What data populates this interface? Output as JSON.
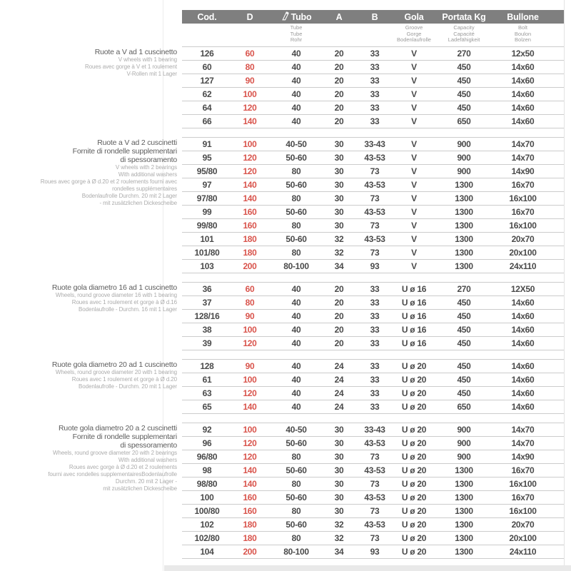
{
  "page": {
    "background": "#ffffff",
    "header_bg": "#7f7f7f",
    "accent_red": "#d9544c",
    "row_line_color": "#cccccc"
  },
  "table": {
    "columns": [
      {
        "key": "cod",
        "label": "Cod.",
        "sub": []
      },
      {
        "key": "d",
        "label": "D",
        "sub": [],
        "value_color": "#d9544c"
      },
      {
        "key": "tubo",
        "label": "Tubo",
        "icon": "tube-icon",
        "sub": [
          "Tube",
          "Tube",
          "Rohr"
        ]
      },
      {
        "key": "a",
        "label": "A",
        "sub": []
      },
      {
        "key": "b",
        "label": "B",
        "sub": []
      },
      {
        "key": "gola",
        "label": "Gola",
        "sub": [
          "Groove",
          "Gorge",
          "Bodenlaufrolle"
        ]
      },
      {
        "key": "portata",
        "label": "Portata Kg",
        "sub": [
          "Capacity",
          "Capacité",
          "Ladefähigkeit"
        ]
      },
      {
        "key": "bullone",
        "label": "Bullone",
        "sub": [
          "Bolt",
          "Boulon",
          "Bolzen"
        ]
      }
    ],
    "groups": [
      {
        "description": {
          "title_lines": [
            "Ruote a V ad 1 cuscinetto"
          ],
          "sub_lines": [
            "V wheels with 1 bearing",
            "Roues avec gorge à V et 1 roulement",
            "V-Rollen mit 1 Lager"
          ]
        },
        "rows": [
          [
            "126",
            "60",
            "40",
            "20",
            "33",
            "V",
            "270",
            "12x50"
          ],
          [
            "60",
            "80",
            "40",
            "20",
            "33",
            "V",
            "450",
            "14x60"
          ],
          [
            "127",
            "90",
            "40",
            "20",
            "33",
            "V",
            "450",
            "14x60"
          ],
          [
            "62",
            "100",
            "40",
            "20",
            "33",
            "V",
            "450",
            "14x60"
          ],
          [
            "64",
            "120",
            "40",
            "20",
            "33",
            "V",
            "450",
            "14x60"
          ],
          [
            "66",
            "140",
            "40",
            "20",
            "33",
            "V",
            "650",
            "14x60"
          ]
        ]
      },
      {
        "description": {
          "title_lines": [
            "Ruote a V ad 2 cuscinetti",
            "Fornite di rondelle supplementari",
            "di spessoramento"
          ],
          "sub_lines": [
            "V wheels with 2 bearings",
            "With additional washers",
            "Roues avec gorge à Ø d.20 et 2 roulements fourni avec",
            "rondelles supplémentaires",
            "Bodenlaufrolle Durchm. 20 mit 2 Lager",
            "- mit zusätzlichen Dickescheibe"
          ]
        },
        "rows": [
          [
            "91",
            "100",
            "40-50",
            "30",
            "33-43",
            "V",
            "900",
            "14x70"
          ],
          [
            "95",
            "120",
            "50-60",
            "30",
            "43-53",
            "V",
            "900",
            "14x70"
          ],
          [
            "95/80",
            "120",
            "80",
            "30",
            "73",
            "V",
            "900",
            "14x90"
          ],
          [
            "97",
            "140",
            "50-60",
            "30",
            "43-53",
            "V",
            "1300",
            "16x70"
          ],
          [
            "97/80",
            "140",
            "80",
            "30",
            "73",
            "V",
            "1300",
            "16x100"
          ],
          [
            "99",
            "160",
            "50-60",
            "30",
            "43-53",
            "V",
            "1300",
            "16x70"
          ],
          [
            "99/80",
            "160",
            "80",
            "30",
            "73",
            "V",
            "1300",
            "16x100"
          ],
          [
            "101",
            "180",
            "50-60",
            "32",
            "43-53",
            "V",
            "1300",
            "20x70"
          ],
          [
            "101/80",
            "180",
            "80",
            "32",
            "73",
            "V",
            "1300",
            "20x100"
          ],
          [
            "103",
            "200",
            "80-100",
            "34",
            "93",
            "V",
            "1300",
            "24x110"
          ]
        ]
      },
      {
        "description": {
          "title_lines": [
            "Ruote gola diametro 16 ad 1 cuscinetto"
          ],
          "sub_lines": [
            "Wheels, round groove diameter 16 with 1 bearing",
            "Roues avec 1 roulement et gorge à Ø d.16",
            "Bodenlaufrolle - Durchm. 16 mit 1 Lager"
          ]
        },
        "rows": [
          [
            "36",
            "60",
            "40",
            "20",
            "33",
            "U ø 16",
            "270",
            "12X50"
          ],
          [
            "37",
            "80",
            "40",
            "20",
            "33",
            "U ø 16",
            "450",
            "14x60"
          ],
          [
            "128/16",
            "90",
            "40",
            "20",
            "33",
            "U ø 16",
            "450",
            "14x60"
          ],
          [
            "38",
            "100",
            "40",
            "20",
            "33",
            "U ø 16",
            "450",
            "14x60"
          ],
          [
            "39",
            "120",
            "40",
            "20",
            "33",
            "U ø 16",
            "450",
            "14x60"
          ]
        ]
      },
      {
        "description": {
          "title_lines": [
            "Ruote gola diametro 20 ad 1 cuscinetto"
          ],
          "sub_lines": [
            "Wheels, round groove diameter 20 with 1 bearing",
            "Roues avec 1 roulement et gorge à Ø d.20",
            "Bodenlaufrolle - Durchm. 20 mit 1 Lager"
          ]
        },
        "rows": [
          [
            "128",
            "90",
            "40",
            "24",
            "33",
            "U ø 20",
            "450",
            "14x60"
          ],
          [
            "61",
            "100",
            "40",
            "24",
            "33",
            "U ø 20",
            "450",
            "14x60"
          ],
          [
            "63",
            "120",
            "40",
            "24",
            "33",
            "U ø 20",
            "450",
            "14x60"
          ],
          [
            "65",
            "140",
            "40",
            "24",
            "33",
            "U ø 20",
            "650",
            "14x60"
          ]
        ]
      },
      {
        "description": {
          "title_lines": [
            "Ruote gola diametro 20 a 2 cuscinetti",
            "Fornite di rondelle supplementari",
            "di spessoramento"
          ],
          "sub_lines": [
            "Wheels, round groove diameter 20 with 2 bearings",
            "With additional washers",
            "Roues avec gorge à Ø d.20 et 2 roulements",
            "fourni avec rondelles supplementairesBodenlaufrolle",
            "Durchm. 20 mit 2 Lager -",
            "mit zusätzlichen Dickescheibe"
          ]
        },
        "rows": [
          [
            "92",
            "100",
            "40-50",
            "30",
            "33-43",
            "U ø 20",
            "900",
            "14x70"
          ],
          [
            "96",
            "120",
            "50-60",
            "30",
            "43-53",
            "U ø 20",
            "900",
            "14x70"
          ],
          [
            "96/80",
            "120",
            "80",
            "30",
            "73",
            "U ø 20",
            "900",
            "14x90"
          ],
          [
            "98",
            "140",
            "50-60",
            "30",
            "43-53",
            "U ø 20",
            "1300",
            "16x70"
          ],
          [
            "98/80",
            "140",
            "80",
            "30",
            "73",
            "U ø 20",
            "1300",
            "16x100"
          ],
          [
            "100",
            "160",
            "50-60",
            "30",
            "43-53",
            "U ø 20",
            "1300",
            "16x70"
          ],
          [
            "100/80",
            "160",
            "80",
            "30",
            "73",
            "U ø 20",
            "1300",
            "16x100"
          ],
          [
            "102",
            "180",
            "50-60",
            "32",
            "43-53",
            "U ø 20",
            "1300",
            "20x70"
          ],
          [
            "102/80",
            "180",
            "80",
            "32",
            "73",
            "U ø 20",
            "1300",
            "20x100"
          ],
          [
            "104",
            "200",
            "80-100",
            "34",
            "93",
            "U ø 20",
            "1300",
            "24x110"
          ]
        ]
      }
    ]
  }
}
